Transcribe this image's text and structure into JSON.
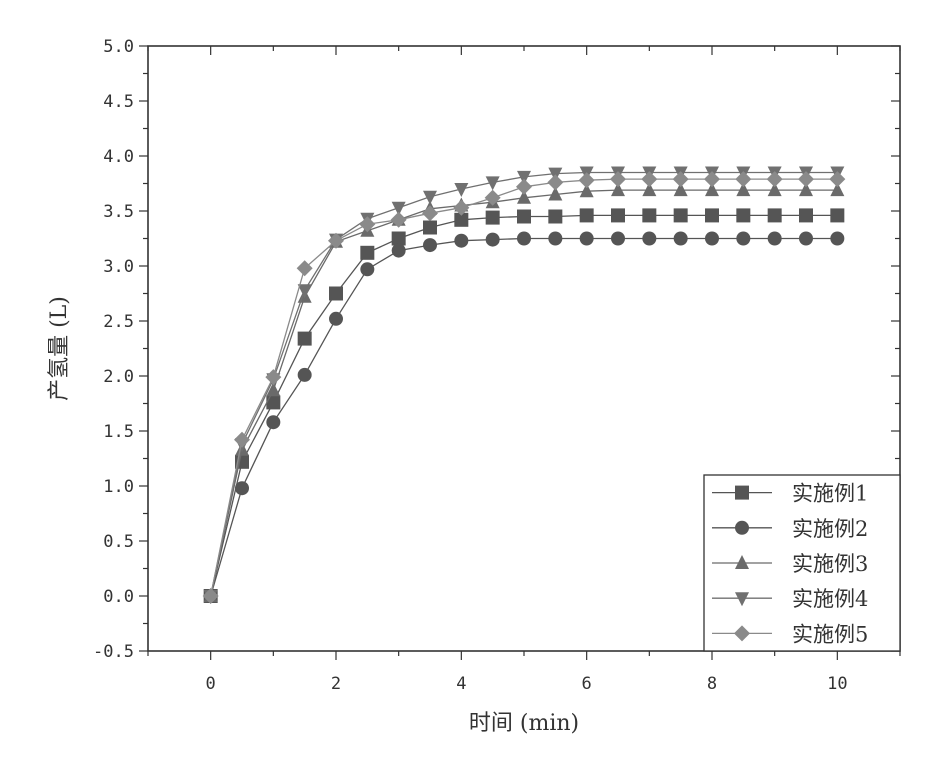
{
  "chart_data": {
    "type": "line",
    "title": "",
    "xlabel": "时间 (min)",
    "ylabel": "产氢量 (L)",
    "xlim": [
      -1,
      11
    ],
    "ylim": [
      -0.5,
      5.0
    ],
    "xticks": [
      0,
      2,
      4,
      6,
      8,
      10
    ],
    "yticks": [
      -0.5,
      0.0,
      0.5,
      1.0,
      1.5,
      2.0,
      2.5,
      3.0,
      3.5,
      4.0,
      4.5,
      5.0
    ],
    "grid": false,
    "legend_position": "bottom-right",
    "x": [
      0,
      0.5,
      1,
      1.5,
      2,
      2.5,
      3,
      3.5,
      4,
      4.5,
      5,
      5.5,
      6,
      6.5,
      7,
      7.5,
      8,
      8.5,
      9,
      9.5,
      10
    ],
    "series": [
      {
        "name": "实施例1",
        "marker": "square",
        "color": "#555555",
        "values": [
          0,
          1.22,
          1.76,
          2.34,
          2.75,
          3.12,
          3.25,
          3.35,
          3.42,
          3.44,
          3.45,
          3.45,
          3.46,
          3.46,
          3.46,
          3.46,
          3.46,
          3.46,
          3.46,
          3.46,
          3.46
        ]
      },
      {
        "name": "实施例2",
        "marker": "circle",
        "color": "#555555",
        "values": [
          0,
          0.98,
          1.58,
          2.01,
          2.52,
          2.97,
          3.14,
          3.19,
          3.23,
          3.24,
          3.25,
          3.25,
          3.25,
          3.25,
          3.25,
          3.25,
          3.25,
          3.25,
          3.25,
          3.25,
          3.25
        ]
      },
      {
        "name": "实施例3",
        "marker": "triangle-up",
        "color": "#6a6a6a",
        "values": [
          0,
          1.33,
          1.87,
          2.72,
          3.22,
          3.32,
          3.42,
          3.52,
          3.55,
          3.58,
          3.62,
          3.65,
          3.68,
          3.69,
          3.69,
          3.69,
          3.69,
          3.69,
          3.69,
          3.69,
          3.69
        ]
      },
      {
        "name": "实施例4",
        "marker": "triangle-down",
        "color": "#707070",
        "values": [
          0,
          1.38,
          1.97,
          2.78,
          3.24,
          3.43,
          3.53,
          3.63,
          3.7,
          3.76,
          3.81,
          3.84,
          3.85,
          3.85,
          3.85,
          3.85,
          3.85,
          3.85,
          3.85,
          3.85,
          3.85
        ]
      },
      {
        "name": "实施例5",
        "marker": "diamond",
        "color": "#8a8a8a",
        "values": [
          0,
          1.42,
          1.99,
          2.98,
          3.23,
          3.38,
          3.42,
          3.48,
          3.53,
          3.62,
          3.72,
          3.76,
          3.78,
          3.79,
          3.79,
          3.79,
          3.79,
          3.79,
          3.79,
          3.79,
          3.79
        ]
      }
    ]
  }
}
